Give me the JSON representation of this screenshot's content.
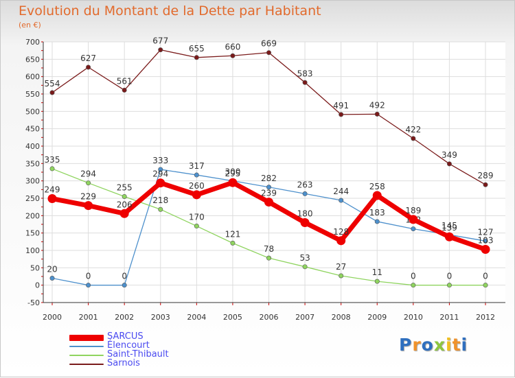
{
  "title": "Evolution du Montant de la Dette par Habitant",
  "subtitle": "(en €)",
  "logo": {
    "text": "Proxiti",
    "colors": [
      "#2f6fbf",
      "#f0922b",
      "#2f6fbf",
      "#8dc63f",
      "#f0c020",
      "#f0922b",
      "#2f6fbf"
    ]
  },
  "chart_data": {
    "type": "line",
    "title": "Evolution du Montant de la Dette par Habitant",
    "ylabel": "(en €)",
    "categories": [
      "2000",
      "2001",
      "2002",
      "2003",
      "2004",
      "2005",
      "2006",
      "2007",
      "2008",
      "2009",
      "2010",
      "2011",
      "2012"
    ],
    "ylim": [
      -50,
      700
    ],
    "yticks": [
      -50,
      0,
      50,
      100,
      150,
      200,
      250,
      300,
      350,
      400,
      450,
      500,
      550,
      600,
      650,
      700
    ],
    "grid": true,
    "legend_position": "bottom-left",
    "series": [
      {
        "name": "SARCUS",
        "color": "#ee0000",
        "values": [
          249,
          229,
          206,
          294,
          260,
          295,
          239,
          180,
          128,
          258,
          189,
          139,
          103
        ]
      },
      {
        "name": "Élencourt",
        "color": "#4d90cc",
        "values": [
          20,
          0,
          0,
          333,
          317,
          300,
          282,
          263,
          244,
          183,
          162,
          145,
          127
        ]
      },
      {
        "name": "Saint-Thibault",
        "color": "#8fd45f",
        "values": [
          335,
          294,
          255,
          218,
          170,
          121,
          78,
          53,
          27,
          11,
          0,
          0,
          0
        ]
      },
      {
        "name": "Sarnois",
        "color": "#7a1a1a",
        "values": [
          554,
          627,
          561,
          677,
          655,
          660,
          669,
          583,
          491,
          492,
          422,
          349,
          289
        ]
      }
    ]
  }
}
